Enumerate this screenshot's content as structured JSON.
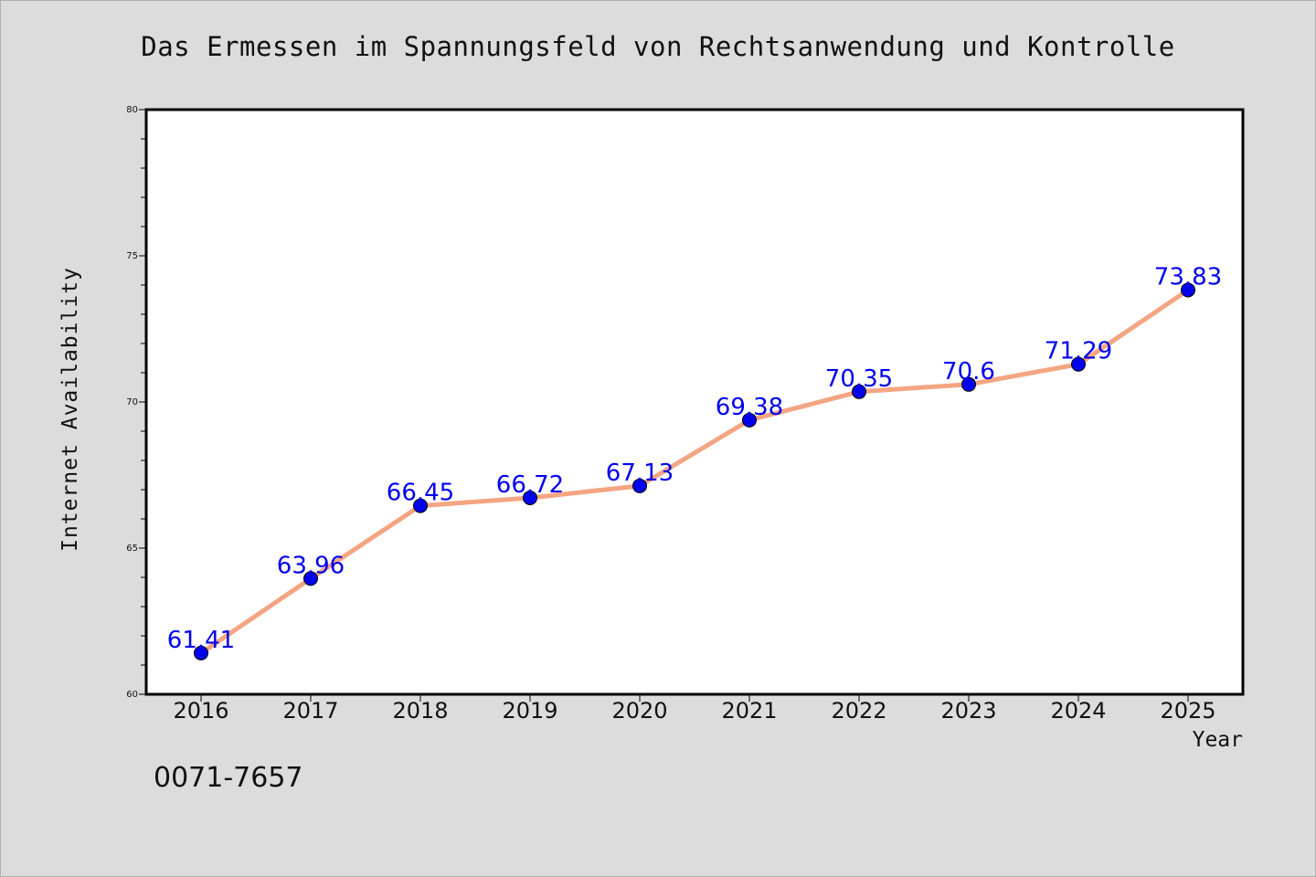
{
  "chart_data": {
    "type": "line",
    "title": "Das Ermessen im Spannungsfeld von Rechtsanwendung und Kontrolle",
    "xlabel": "Year",
    "ylabel": "Internet Availability",
    "categories": [
      "2016",
      "2017",
      "2018",
      "2019",
      "2020",
      "2021",
      "2022",
      "2023",
      "2024",
      "2025"
    ],
    "series": [
      {
        "values": [
          61.41,
          63.96,
          66.45,
          66.72,
          67.13,
          69.38,
          70.35,
          70.6,
          71.29,
          73.83
        ],
        "data_labels": [
          "61.41",
          "63.96",
          "66.45",
          "66.72",
          "67.13",
          "69.38",
          "70.35",
          "70.6",
          "71.29",
          "73.83"
        ]
      }
    ],
    "ylim": [
      60,
      80
    ],
    "y_ticks": [
      "60",
      "65",
      "70",
      "75",
      "80"
    ],
    "grid": false,
    "legend": "none",
    "colors": {
      "line": "#f4a582",
      "marker": "#0000ee",
      "data_label": "#0000ee",
      "background": "#dcdcdc",
      "plot_background": "#ffffff"
    }
  },
  "footnote": "0071-7657"
}
